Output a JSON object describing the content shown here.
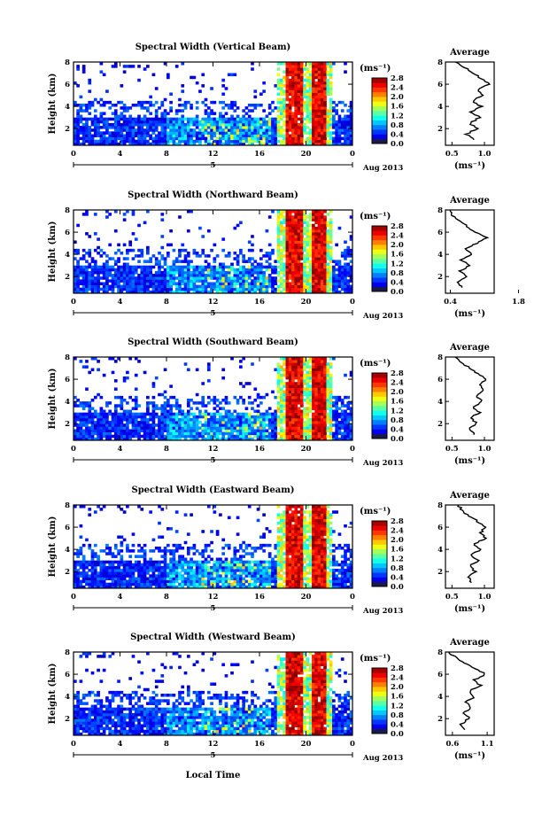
{
  "figure": {
    "x_axis_label": "Local Time",
    "date_label": "Aug 2013",
    "date_marker": "5",
    "avg_title": "Average",
    "avg_xlabel": "(ms⁻¹)",
    "height_label": "Height (km)",
    "colorbar_unit": "(ms⁻¹)"
  },
  "chart_data": [
    {
      "type": "heatmap",
      "title": "Spectral Width (Vertical Beam)",
      "xlabel": "",
      "ylabel": "Height (km)",
      "xticks": [
        "0",
        "4",
        "8",
        "12",
        "16",
        "20",
        "0"
      ],
      "xlim": [
        0,
        24
      ],
      "ylim": [
        0.5,
        8
      ],
      "yticks": [
        "2",
        "4",
        "6",
        "8"
      ],
      "colorbar": {
        "unit": "(ms⁻¹)",
        "ticks": [
          "0.0",
          "0.4",
          "0.8",
          "1.2",
          "1.6",
          "2.0",
          "2.4",
          "2.8"
        ],
        "range": [
          0,
          2.8
        ]
      },
      "average_profile": {
        "title": "Average",
        "xlabel": "(ms⁻¹)",
        "xticks": [
          "0.5",
          "1.0"
        ],
        "xlim": [
          0.4,
          1.15
        ],
        "height": [
          1,
          1.5,
          2,
          2.5,
          3,
          3.5,
          4,
          4.5,
          5,
          5.5,
          6,
          6.5,
          7,
          7.5,
          8
        ],
        "value": [
          0.85,
          0.72,
          0.88,
          0.78,
          0.92,
          0.8,
          0.95,
          0.82,
          0.98,
          0.9,
          1.08,
          0.95,
          0.82,
          0.7,
          0.55
        ]
      }
    },
    {
      "type": "heatmap",
      "title": "Spectral Width (Northward Beam)",
      "xlabel": "",
      "ylabel": "Height (km)",
      "xticks": [
        "0",
        "4",
        "8",
        "12",
        "16",
        "20",
        "0"
      ],
      "xlim": [
        0,
        24
      ],
      "ylim": [
        0.5,
        8
      ],
      "yticks": [
        "2",
        "4",
        "6",
        "8"
      ],
      "colorbar": {
        "unit": "(ms⁻¹)",
        "ticks": [
          "0.0",
          "0.4",
          "0.8",
          "1.2",
          "1.6",
          "2.0",
          "2.4",
          "2.8"
        ],
        "range": [
          0,
          2.8
        ]
      },
      "average_profile": {
        "title": "Average",
        "xlabel": "(ms⁻¹)",
        "xticks": [
          "0.4",
          "1.8"
        ],
        "xlim": [
          0.3,
          1.3
        ],
        "height": [
          1,
          1.5,
          2,
          2.5,
          3,
          3.5,
          4,
          4.5,
          5,
          5.5,
          6,
          6.5,
          7,
          7.5,
          8
        ],
        "value": [
          0.65,
          0.55,
          0.75,
          0.6,
          0.8,
          0.62,
          0.85,
          0.7,
          0.95,
          1.15,
          0.9,
          0.75,
          0.6,
          0.45,
          0.4
        ]
      }
    },
    {
      "type": "heatmap",
      "title": "Spectral Width (Southward Beam)",
      "xlabel": "",
      "ylabel": "Height (km)",
      "xticks": [
        "0",
        "4",
        "8",
        "12",
        "16",
        "20",
        "0"
      ],
      "xlim": [
        0,
        24
      ],
      "ylim": [
        0.5,
        8
      ],
      "yticks": [
        "2",
        "4",
        "6",
        "8"
      ],
      "colorbar": {
        "unit": "(ms⁻¹)",
        "ticks": [
          "0.0",
          "0.4",
          "0.8",
          "1.2",
          "1.6",
          "2.0",
          "2.4",
          "2.8"
        ],
        "range": [
          0,
          2.8
        ]
      },
      "average_profile": {
        "title": "Average",
        "xlabel": "(ms⁻¹)",
        "xticks": [
          "0.5",
          "1.0"
        ],
        "xlim": [
          0.4,
          1.15
        ],
        "height": [
          1,
          1.5,
          2,
          2.5,
          3,
          3.5,
          4,
          4.5,
          5,
          5.5,
          6,
          6.5,
          7,
          7.5,
          8
        ],
        "value": [
          0.85,
          0.75,
          0.88,
          0.8,
          0.92,
          0.82,
          0.96,
          0.86,
          1.0,
          0.92,
          1.02,
          0.9,
          0.78,
          0.65,
          0.55
        ]
      }
    },
    {
      "type": "heatmap",
      "title": "Spectral Width (Eastward Beam)",
      "xlabel": "",
      "ylabel": "Height (km)",
      "xticks": [
        "0",
        "4",
        "8",
        "12",
        "16",
        "20",
        "0"
      ],
      "xlim": [
        0,
        24
      ],
      "ylim": [
        0.5,
        8
      ],
      "yticks": [
        "2",
        "4",
        "6",
        "8"
      ],
      "colorbar": {
        "unit": "(ms⁻¹)",
        "ticks": [
          "0.0",
          "0.4",
          "0.8",
          "1.2",
          "1.6",
          "2.0",
          "2.4",
          "2.8"
        ],
        "range": [
          0,
          2.8
        ]
      },
      "average_profile": {
        "title": "Average",
        "xlabel": "(ms⁻¹)",
        "xticks": [
          "0.5",
          "1.0"
        ],
        "xlim": [
          0.4,
          1.15
        ],
        "height": [
          1,
          1.5,
          2,
          2.5,
          3,
          3.5,
          4,
          4.5,
          5,
          5.5,
          6,
          6.5,
          7,
          7.5,
          8
        ],
        "value": [
          0.82,
          0.74,
          0.86,
          0.78,
          0.9,
          0.8,
          0.94,
          0.84,
          1.02,
          0.94,
          1.0,
          0.9,
          0.76,
          0.66,
          0.6
        ]
      }
    },
    {
      "type": "heatmap",
      "title": "Spectral Width (Westward Beam)",
      "xlabel": "Local Time",
      "ylabel": "Height (km)",
      "xticks": [
        "0",
        "4",
        "8",
        "12",
        "16",
        "20",
        "0"
      ],
      "xlim": [
        0,
        24
      ],
      "ylim": [
        0.5,
        8
      ],
      "yticks": [
        "2",
        "4",
        "6",
        "8"
      ],
      "colorbar": {
        "unit": "(ms⁻¹)",
        "ticks": [
          "0.0",
          "0.4",
          "0.8",
          "1.2",
          "1.6",
          "2.0",
          "2.4",
          "2.8"
        ],
        "range": [
          0,
          2.8
        ]
      },
      "average_profile": {
        "title": "Average",
        "xlabel": "(ms⁻¹)",
        "xticks": [
          "0.6",
          "1.1"
        ],
        "xlim": [
          0.5,
          1.2
        ],
        "height": [
          1,
          1.5,
          2,
          2.5,
          3,
          3.5,
          4,
          4.5,
          5,
          5.5,
          6,
          6.5,
          7,
          7.5,
          8
        ],
        "value": [
          0.8,
          0.72,
          0.84,
          0.76,
          0.88,
          0.8,
          0.92,
          0.84,
          1.0,
          0.92,
          1.08,
          0.94,
          0.78,
          0.66,
          0.55
        ]
      }
    }
  ]
}
